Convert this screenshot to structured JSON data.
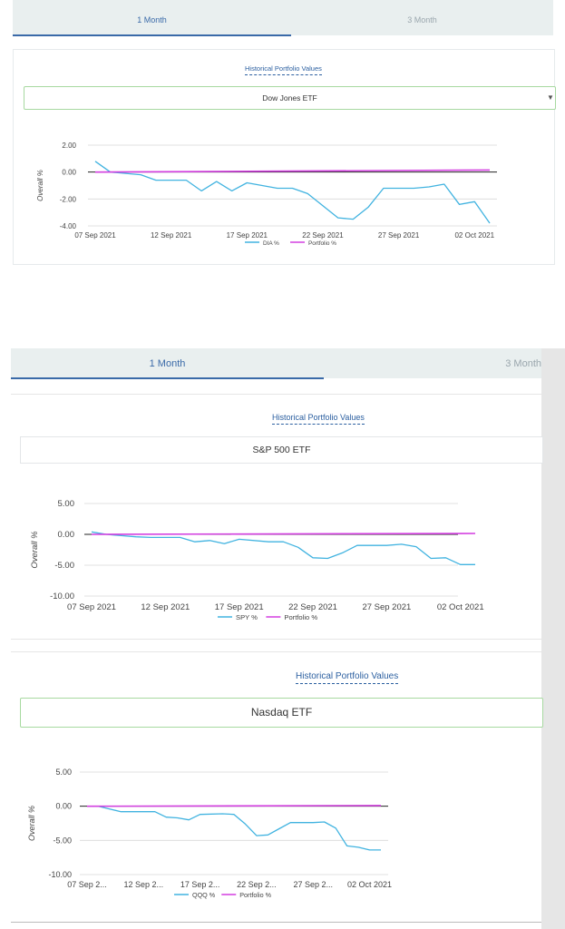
{
  "colors": {
    "accent": "#3a6aa8",
    "heading": "#2b5fa0",
    "etf_line": "#41b3e0",
    "portfolio_line": "#d33fe0",
    "tab_bg": "#e9efef"
  },
  "panel1": {
    "tabs": [
      {
        "label": "1 Month"
      },
      {
        "label": "3 Month"
      }
    ],
    "heading": "Historical Portfolio Values",
    "select": {
      "value": "Dow Jones ETF"
    }
  },
  "panel2": {
    "tabs": [
      {
        "label": "1 Month"
      },
      {
        "label": "3 Month"
      }
    ],
    "cards": [
      {
        "heading": "Historical Portfolio Values",
        "select": {
          "value": "S&P 500 ETF"
        }
      },
      {
        "heading": "Historical Portfolio Values",
        "select": {
          "value": "Nasdaq ETF"
        }
      }
    ]
  },
  "chart_data": [
    {
      "type": "line",
      "title": "",
      "ylabel": "Overall %",
      "xlabel": "",
      "ylim": [
        -4,
        2
      ],
      "yticks": [
        "2.00",
        "0.00",
        "-2.00",
        "-4.00"
      ],
      "xticks": [
        "07 Sep 2021",
        "12 Sep 2021",
        "17 Sep 2021",
        "22 Sep 2021",
        "27 Sep 2021",
        "02 Oct 2021"
      ],
      "series": [
        {
          "name": "DIA %",
          "x": [
            0,
            1,
            3,
            4,
            6,
            7,
            8,
            9,
            10,
            12,
            13,
            14,
            16,
            17,
            18,
            19,
            20,
            21,
            22,
            23,
            24,
            25,
            26
          ],
          "values": [
            0.8,
            0,
            -0.2,
            -0.6,
            -0.6,
            -1.4,
            -0.7,
            -1.4,
            -0.8,
            -1.2,
            -1.2,
            -1.6,
            -3.4,
            -3.5,
            -2.6,
            -1.2,
            -1.2,
            -1.2,
            -1.1,
            -0.9,
            -2.4,
            -2.2,
            -3.8
          ]
        },
        {
          "name": "Portfolio %",
          "x": [
            0,
            26
          ],
          "values": [
            0,
            0.15
          ]
        }
      ]
    },
    {
      "type": "line",
      "title": "",
      "ylabel": "Overall %",
      "xlabel": "",
      "ylim": [
        -10,
        5
      ],
      "yticks": [
        "5.00",
        "0.00",
        "-5.00",
        "-10.00"
      ],
      "xticks": [
        "07 Sep 2021",
        "12 Sep 2021",
        "17 Sep 2021",
        "22 Sep 2021",
        "27 Sep 2021",
        "02 Oct 2021"
      ],
      "series": [
        {
          "name": "SPY %",
          "x": [
            0,
            1,
            2,
            3,
            4,
            6,
            7,
            8,
            9,
            10,
            12,
            13,
            14,
            15,
            16,
            17,
            18,
            19,
            20,
            21,
            22,
            23,
            24,
            25,
            26
          ],
          "values": [
            0.4,
            0,
            -0.2,
            -0.4,
            -0.5,
            -0.5,
            -1.2,
            -1,
            -1.5,
            -0.8,
            -1.2,
            -1.2,
            -2.1,
            -3.8,
            -3.9,
            -3,
            -1.8,
            -1.8,
            -1.8,
            -1.6,
            -2,
            -3.9,
            -3.8,
            -4.9,
            -4.9
          ]
        },
        {
          "name": "Portfolio %",
          "x": [
            0,
            26
          ],
          "values": [
            0,
            0.15
          ]
        }
      ]
    },
    {
      "type": "line",
      "title": "",
      "ylabel": "Overall %",
      "xlabel": "",
      "ylim": [
        -10,
        5
      ],
      "yticks": [
        "5.00",
        "0.00",
        "-5.00",
        "-10.00"
      ],
      "xticks": [
        "07 Sep 2...",
        "12 Sep 2...",
        "17 Sep 2...",
        "22 Sep 2...",
        "27 Sep 2...",
        "02 Oct 2021"
      ],
      "series": [
        {
          "name": "QQQ %",
          "x": [
            0,
            1,
            2,
            3,
            4,
            6,
            7,
            8,
            9,
            10,
            12,
            13,
            14,
            15,
            16,
            17,
            18,
            19,
            20,
            21,
            22,
            23,
            24,
            25,
            26
          ],
          "values": [
            0,
            0,
            -0.4,
            -0.8,
            -0.8,
            -0.8,
            -1.6,
            -1.7,
            -2,
            -1.2,
            -1.1,
            -1.2,
            -2.6,
            -4.3,
            -4.2,
            -3.3,
            -2.4,
            -2.4,
            -2.4,
            -2.3,
            -3.2,
            -5.8,
            -6,
            -6.4,
            -6.4
          ]
        },
        {
          "name": "Portfolio %",
          "x": [
            0,
            26
          ],
          "values": [
            0,
            0.1
          ]
        }
      ]
    }
  ]
}
